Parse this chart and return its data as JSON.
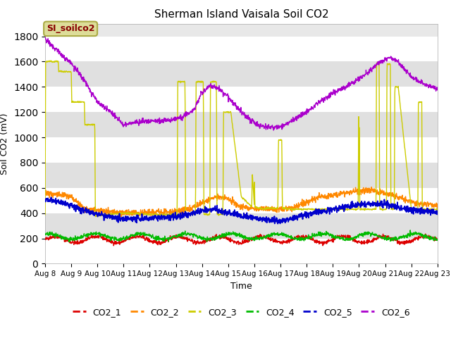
{
  "title": "Sherman Island Vaisala Soil CO2",
  "ylabel": "Soil CO2 (mV)",
  "xlabel": "Time",
  "annotation": "SI_soilco2",
  "legend_labels": [
    "CO2_1",
    "CO2_2",
    "CO2_3",
    "CO2_4",
    "CO2_5",
    "CO2_6"
  ],
  "colors": {
    "CO2_1": "#dd0000",
    "CO2_2": "#ff8800",
    "CO2_3": "#cccc00",
    "CO2_4": "#00bb00",
    "CO2_5": "#0000cc",
    "CO2_6": "#aa00cc"
  },
  "ylim": [
    0,
    1900
  ],
  "yticks": [
    0,
    200,
    400,
    600,
    800,
    1000,
    1200,
    1400,
    1600,
    1800
  ],
  "n_points": 1500,
  "x_start": 8.0,
  "x_end": 23.0,
  "x_tick_labels": [
    "Aug 8",
    "Aug 9",
    "Aug 10",
    "Aug 11",
    "Aug 12",
    "Aug 13",
    "Aug 14",
    "Aug 15",
    "Aug 16",
    "Aug 17",
    "Aug 18",
    "Aug 19",
    "Aug 20",
    "Aug 21",
    "Aug 22",
    "Aug 23"
  ],
  "x_tick_positions": [
    8,
    9,
    10,
    11,
    12,
    13,
    14,
    15,
    16,
    17,
    18,
    19,
    20,
    21,
    22,
    23
  ],
  "plot_bg_color": "#e8e8e8",
  "annotation_bg": "#dddd99",
  "annotation_border": "#aaaa44",
  "annotation_text_color": "#880000",
  "band_colors": [
    "#ffffff",
    "#e0e0e0"
  ]
}
